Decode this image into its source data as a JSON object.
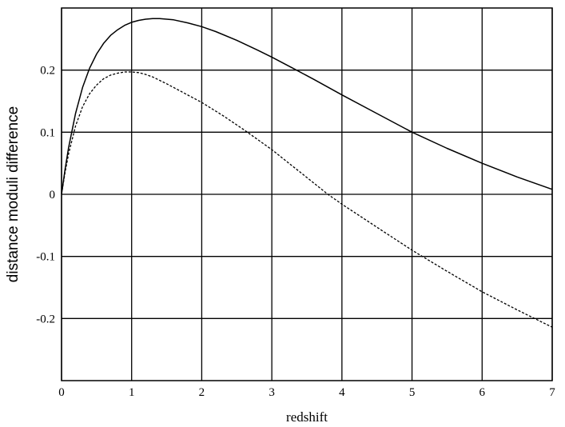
{
  "chart_data": {
    "type": "line",
    "title": "",
    "xlabel": "redshift",
    "ylabel": "distance moduli difference",
    "xlim": [
      0,
      7
    ],
    "ylim": [
      -0.3,
      0.3
    ],
    "grid": true,
    "legend": "none",
    "x_ticks": [
      0,
      1,
      2,
      3,
      4,
      5,
      6,
      7
    ],
    "x_tick_labels": [
      "0",
      "1",
      "2",
      "3",
      "4",
      "5",
      "6",
      "7"
    ],
    "y_ticks": [
      0.2,
      0.1,
      0,
      -0.1,
      -0.2
    ],
    "y_tick_labels": [
      "0.2",
      "0.1",
      "0",
      "-0.1",
      "-0.2"
    ],
    "series": [
      {
        "style": "solid",
        "color": "#000000",
        "x": [
          0,
          0.05,
          0.1,
          0.2,
          0.3,
          0.4,
          0.5,
          0.6,
          0.7,
          0.8,
          0.9,
          1.0,
          1.1,
          1.2,
          1.3,
          1.4,
          1.5,
          1.6,
          1.8,
          2.0,
          2.2,
          2.5,
          2.8,
          3.0,
          3.3,
          3.6,
          4.0,
          4.5,
          5.0,
          5.5,
          6.0,
          6.5,
          7.0
        ],
        "y": [
          0,
          0.04,
          0.075,
          0.13,
          0.172,
          0.203,
          0.226,
          0.243,
          0.256,
          0.265,
          0.272,
          0.277,
          0.28,
          0.282,
          0.283,
          0.283,
          0.282,
          0.281,
          0.276,
          0.27,
          0.262,
          0.248,
          0.232,
          0.221,
          0.203,
          0.185,
          0.16,
          0.13,
          0.1,
          0.074,
          0.05,
          0.028,
          0.008
        ]
      },
      {
        "style": "dashed",
        "color": "#000000",
        "x": [
          0,
          0.05,
          0.1,
          0.2,
          0.3,
          0.4,
          0.5,
          0.6,
          0.7,
          0.8,
          0.9,
          1.0,
          1.1,
          1.2,
          1.3,
          1.5,
          1.7,
          2.0,
          2.3,
          2.6,
          3.0,
          3.5,
          3.8,
          4.0,
          4.5,
          5.0,
          5.5,
          6.0,
          6.5,
          7.0
        ],
        "y": [
          0,
          0.035,
          0.065,
          0.11,
          0.141,
          0.162,
          0.176,
          0.186,
          0.192,
          0.195,
          0.197,
          0.197,
          0.196,
          0.193,
          0.189,
          0.178,
          0.166,
          0.148,
          0.127,
          0.104,
          0.072,
          0.027,
          0.0,
          -0.016,
          -0.053,
          -0.09,
          -0.124,
          -0.157,
          -0.186,
          -0.214
        ]
      }
    ]
  }
}
